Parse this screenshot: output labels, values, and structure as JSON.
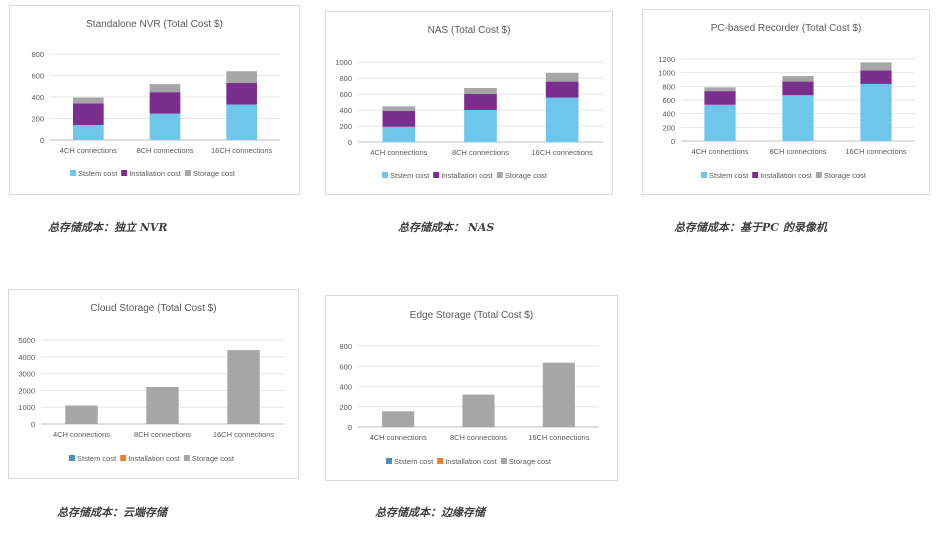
{
  "colors": {
    "system": "#6ec6ea",
    "installation": "#7a2f8f",
    "storage": "#a6a6a6",
    "system_alt": "#4f8fc8",
    "installation_alt": "#ed7d31"
  },
  "captions": [
    "总存储成本：独立 NVR",
    "总存储成本： NAS",
    "总存储成本：基于PC 的录像机",
    "总存储成本：云端存储",
    "总存储成本：边缘存储"
  ],
  "chart_data": [
    {
      "type": "bar",
      "stacked": true,
      "title": "Standalone NVR (Total Cost $)",
      "categories": [
        "4CH connections",
        "8CH connections",
        "16CH connections"
      ],
      "ylim": [
        0,
        800
      ],
      "yticks": [
        0,
        200,
        400,
        600,
        800
      ],
      "grid": true,
      "legend": "bottom",
      "series": [
        {
          "name": "Ststem cost",
          "values": [
            140,
            245,
            330
          ]
        },
        {
          "name": "Installation cost",
          "values": [
            200,
            200,
            200
          ]
        },
        {
          "name": "Storage cost",
          "values": [
            55,
            75,
            110
          ]
        }
      ]
    },
    {
      "type": "bar",
      "stacked": true,
      "title": "NAS (Total Cost $)",
      "categories": [
        "4CH connections",
        "8CH connections",
        "16CH connections"
      ],
      "ylim": [
        0,
        1000
      ],
      "yticks": [
        0,
        200,
        400,
        600,
        800,
        1000
      ],
      "grid": true,
      "legend": "bottom",
      "series": [
        {
          "name": "Ststem cost",
          "values": [
            190,
            400,
            555
          ]
        },
        {
          "name": "Installation cost",
          "values": [
            200,
            200,
            200
          ]
        },
        {
          "name": "Storage cost",
          "values": [
            55,
            75,
            110
          ]
        }
      ]
    },
    {
      "type": "bar",
      "stacked": true,
      "title": "PC-based Recorder (Total Cost $)",
      "categories": [
        "4CH connections",
        "8CH connections",
        "16CH connections"
      ],
      "ylim": [
        0,
        1200
      ],
      "yticks": [
        0,
        200,
        400,
        600,
        800,
        1000,
        1200
      ],
      "grid": true,
      "legend": "bottom",
      "series": [
        {
          "name": "Ststem cost",
          "values": [
            530,
            670,
            835
          ]
        },
        {
          "name": "Installation cost",
          "values": [
            200,
            200,
            200
          ]
        },
        {
          "name": "Storage cost",
          "values": [
            55,
            80,
            115
          ]
        }
      ]
    },
    {
      "type": "bar",
      "stacked": true,
      "title": "Cloud Storage (Total Cost $)",
      "categories": [
        "4CH connections",
        "8CH connections",
        "16CH connections"
      ],
      "ylim": [
        0,
        5000
      ],
      "yticks": [
        0,
        1000,
        2000,
        3000,
        4000,
        5000
      ],
      "grid": true,
      "legend": "bottom",
      "series": [
        {
          "name": "Ststem cost",
          "values": [
            0,
            0,
            0
          ]
        },
        {
          "name": "Installation cost",
          "values": [
            0,
            0,
            0
          ]
        },
        {
          "name": "Storage cost",
          "values": [
            1100,
            2200,
            4400
          ]
        }
      ]
    },
    {
      "type": "bar",
      "stacked": true,
      "title": "Edge Storage (Total Cost $)",
      "categories": [
        "4CH connections",
        "8CH connections",
        "16CH connections"
      ],
      "ylim": [
        0,
        800
      ],
      "yticks": [
        0,
        200,
        400,
        600,
        800
      ],
      "grid": true,
      "legend": "bottom",
      "series": [
        {
          "name": "Ststem cost",
          "values": [
            0,
            0,
            0
          ]
        },
        {
          "name": "Installation cost",
          "values": [
            0,
            0,
            0
          ]
        },
        {
          "name": "Storage cost",
          "values": [
            155,
            320,
            635
          ]
        }
      ]
    }
  ]
}
